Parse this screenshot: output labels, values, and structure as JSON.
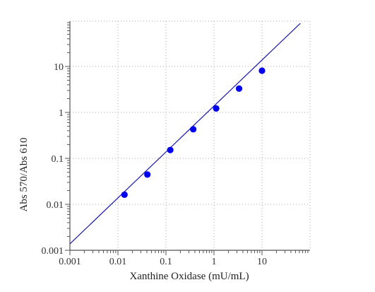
{
  "chart_data": {
    "type": "scatter",
    "title": "",
    "xlabel": "Xanthine Oxidase (mU/mL)",
    "ylabel": "Abs 570/Abs 610",
    "x_scale": "log",
    "y_scale": "log",
    "xlim": [
      0.001,
      100
    ],
    "ylim": [
      0.001,
      100
    ],
    "x_ticks": [
      {
        "value": 0.001,
        "label": "0.001"
      },
      {
        "value": 0.01,
        "label": "0.01"
      },
      {
        "value": 0.1,
        "label": "0.1"
      },
      {
        "value": 1,
        "label": "1"
      },
      {
        "value": 10,
        "label": "10"
      }
    ],
    "y_ticks": [
      {
        "value": 0.001,
        "label": "0.001"
      },
      {
        "value": 0.01,
        "label": "0.01"
      },
      {
        "value": 0.1,
        "label": "0.1"
      },
      {
        "value": 1,
        "label": "1"
      },
      {
        "value": 10,
        "label": "10"
      }
    ],
    "grid": true,
    "grid_style": "dotted",
    "series": [
      {
        "color": "#0000ee",
        "points": [
          {
            "x": 0.0137,
            "y": 0.0162
          },
          {
            "x": 0.041,
            "y": 0.0445
          },
          {
            "x": 0.123,
            "y": 0.152
          },
          {
            "x": 0.37,
            "y": 0.43
          },
          {
            "x": 1.11,
            "y": 1.22
          },
          {
            "x": 3.33,
            "y": 3.3
          },
          {
            "x": 10,
            "y": 8.1
          }
        ]
      }
    ],
    "fit_line": {
      "color": "#1a1aa8",
      "from": {
        "x": 0.001,
        "y": 0.00138
      },
      "to": {
        "x": 63,
        "y": 87
      }
    }
  }
}
